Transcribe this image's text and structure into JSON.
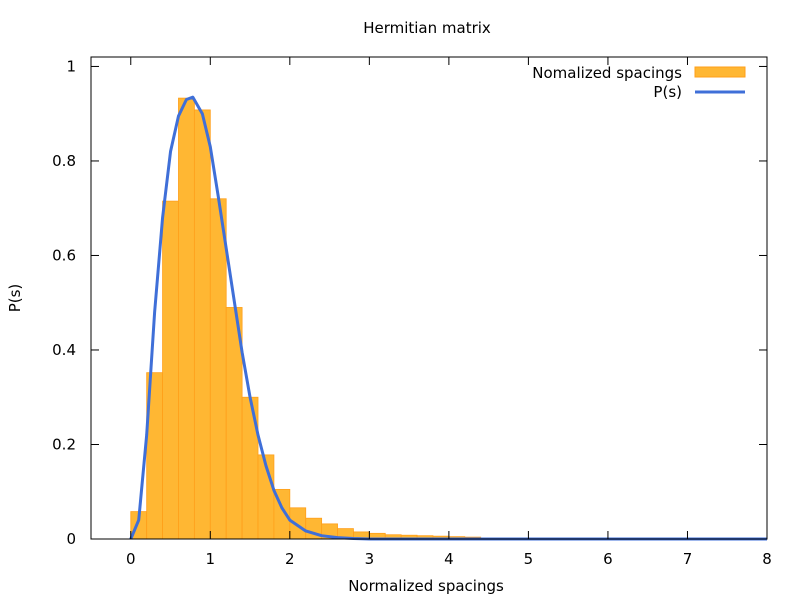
{
  "chart_data": {
    "type": "bar",
    "title": "Hermitian matrix",
    "xlabel": "Normalized spacings",
    "ylabel": "P(s)",
    "xlim": [
      -0.5,
      8
    ],
    "ylim": [
      0,
      1.02
    ],
    "xticks": [
      "0",
      "1",
      "2",
      "3",
      "4",
      "5",
      "6",
      "7",
      "8"
    ],
    "yticks": [
      "0",
      "0.2",
      "0.4",
      "0.6",
      "0.8",
      "1"
    ],
    "grid": false,
    "legend_position": "top-right",
    "histogram": {
      "name": "Nomalized spacings",
      "color": "#ffb733",
      "edge_color": "#ff9f1a",
      "bin_width": 0.2,
      "bins_start": [
        0.0,
        0.2,
        0.4,
        0.6,
        0.8,
        1.0,
        1.2,
        1.4,
        1.6,
        1.8,
        2.0,
        2.2,
        2.4,
        2.6,
        2.8,
        3.0,
        3.2,
        3.4,
        3.6,
        3.8,
        4.0,
        4.2
      ],
      "values": [
        0.058,
        0.352,
        0.715,
        0.933,
        0.908,
        0.72,
        0.49,
        0.3,
        0.178,
        0.105,
        0.066,
        0.044,
        0.032,
        0.022,
        0.015,
        0.012,
        0.009,
        0.008,
        0.007,
        0.006,
        0.005,
        0.004
      ]
    },
    "curve": {
      "name": "P(s)",
      "color": "#3f6fd8",
      "x": [
        0.0,
        0.1,
        0.2,
        0.3,
        0.4,
        0.5,
        0.6,
        0.7,
        0.78,
        0.9,
        1.0,
        1.1,
        1.2,
        1.3,
        1.4,
        1.5,
        1.6,
        1.7,
        1.8,
        1.9,
        2.0,
        2.2,
        2.4,
        2.6,
        2.8,
        3.0,
        3.5,
        4.0,
        5.0,
        6.0,
        7.0,
        8.0
      ],
      "y": [
        0.0,
        0.04,
        0.22,
        0.48,
        0.68,
        0.82,
        0.895,
        0.93,
        0.935,
        0.9,
        0.83,
        0.725,
        0.615,
        0.505,
        0.395,
        0.3,
        0.22,
        0.155,
        0.103,
        0.066,
        0.04,
        0.017,
        0.007,
        0.003,
        0.001,
        0.0,
        0.0,
        0.0,
        0.0,
        0.0,
        0.0,
        0.0
      ]
    }
  }
}
